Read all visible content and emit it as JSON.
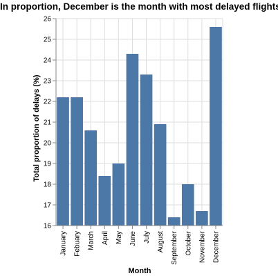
{
  "chart_data": {
    "type": "bar",
    "title": "In proportion, December is the month with most delayed flights",
    "xlabel": "Month",
    "ylabel": "Total proportion of delays (%)",
    "categories": [
      "January",
      "Febuary",
      "March",
      "April",
      "May",
      "June",
      "July",
      "August",
      "September",
      "October",
      "November",
      "December"
    ],
    "values": [
      22.2,
      22.2,
      20.6,
      18.4,
      19.0,
      24.3,
      23.3,
      20.9,
      16.4,
      18.0,
      16.7,
      25.6
    ],
    "ylim": [
      16,
      26
    ],
    "yticks": [
      "16",
      "17",
      "18",
      "19",
      "20",
      "21",
      "22",
      "23",
      "24",
      "25",
      "26"
    ],
    "grid": true,
    "colors": {
      "bar": "#4c78a8",
      "grid": "#dddddd",
      "axis": "#888888",
      "text": "#000000"
    }
  }
}
